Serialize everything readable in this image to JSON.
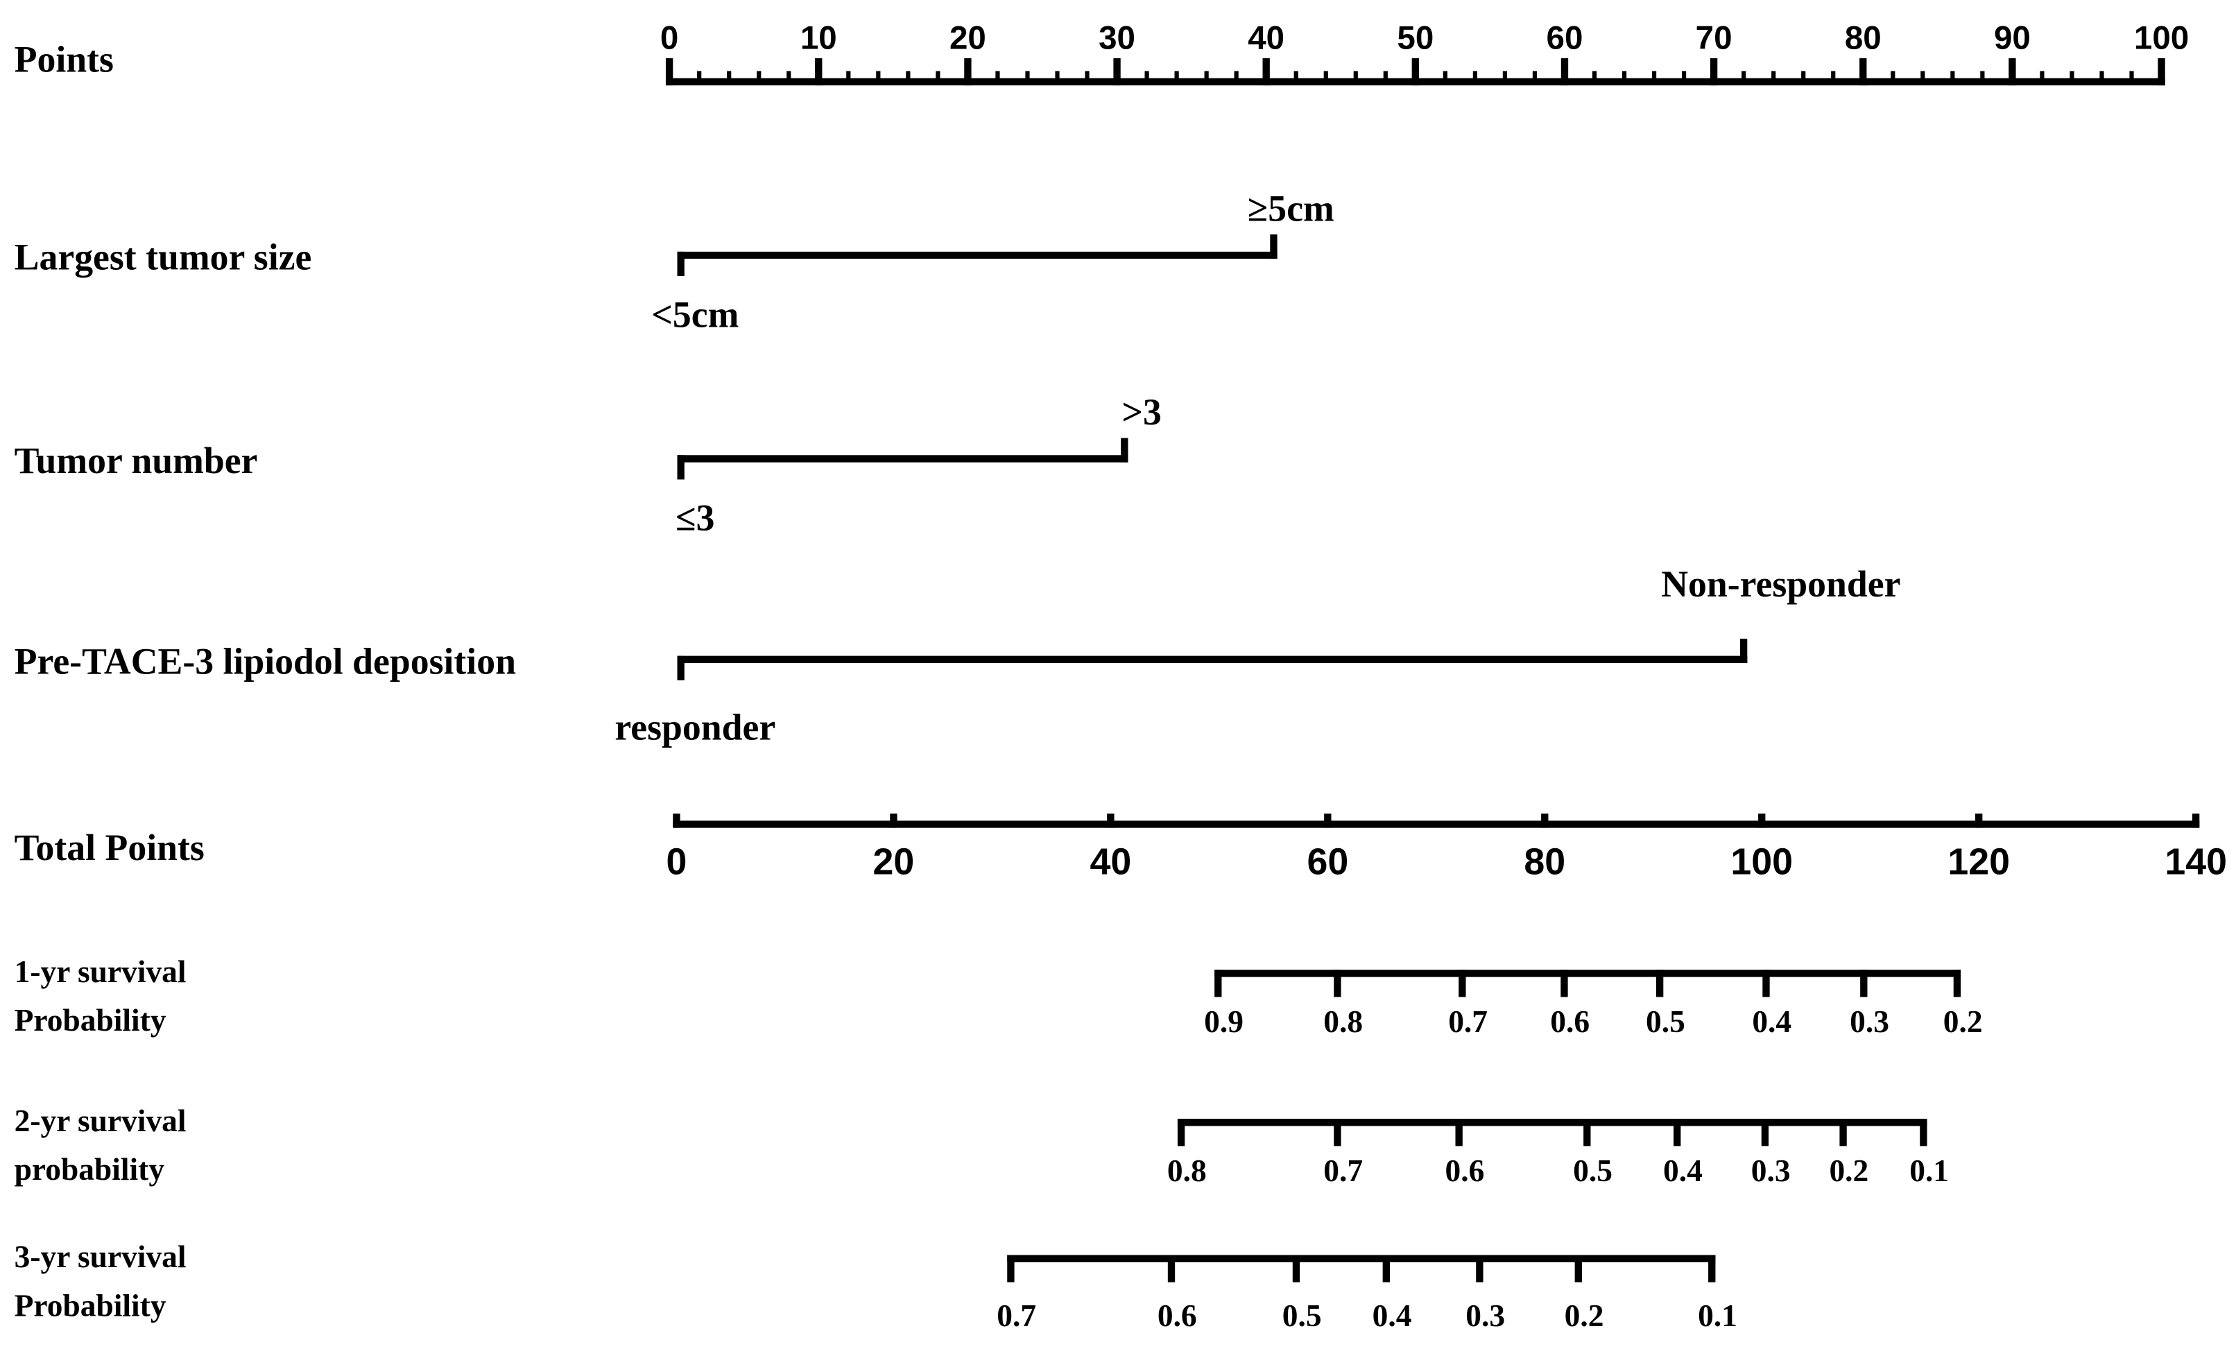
{
  "chart_data": {
    "type": "nomogram",
    "points_axis": {
      "label": "Points",
      "xlim": [
        0,
        100
      ],
      "xticks": [
        0,
        10,
        20,
        30,
        40,
        50,
        60,
        70,
        80,
        90,
        100
      ],
      "minor_tick_step": 2
    },
    "variables": [
      {
        "label": "Largest tumor size",
        "levels": [
          {
            "label": "<5cm",
            "points": 0
          },
          {
            "label": "≥5cm",
            "points": 40.5
          }
        ]
      },
      {
        "label": "Tumor number",
        "levels": [
          {
            "label": "≤3",
            "points": 0
          },
          {
            "label": ">3",
            "points": 30.5
          }
        ]
      },
      {
        "label": "Pre-TACE-3 lipiodol deposition",
        "levels": [
          {
            "label": "responder",
            "points": 0
          },
          {
            "label": "Non-responder",
            "points": 72
          }
        ]
      }
    ],
    "total_points_axis": {
      "label": "Total Points",
      "xlim": [
        0,
        140
      ],
      "xticks": [
        0,
        20,
        40,
        60,
        80,
        100,
        120,
        140
      ]
    },
    "survival_axes": [
      {
        "label": [
          "1-yr survival",
          "Probability"
        ],
        "ticks": [
          {
            "value": 49.9,
            "label": "0.9"
          },
          {
            "value": 60.9,
            "label": "0.8"
          },
          {
            "value": 72.4,
            "label": "0.7"
          },
          {
            "value": 81.8,
            "label": "0.6"
          },
          {
            "value": 90.6,
            "label": "0.5"
          },
          {
            "value": 100.4,
            "label": "0.4"
          },
          {
            "value": 109.4,
            "label": "0.3"
          },
          {
            "value": 118.0,
            "label": "0.2"
          }
        ]
      },
      {
        "label": [
          "2-yr survival",
          "probability"
        ],
        "ticks": [
          {
            "value": 46.5,
            "label": "0.8"
          },
          {
            "value": 60.9,
            "label": "0.7"
          },
          {
            "value": 72.1,
            "label": "0.6"
          },
          {
            "value": 83.9,
            "label": "0.5"
          },
          {
            "value": 92.2,
            "label": "0.4"
          },
          {
            "value": 100.3,
            "label": "0.3"
          },
          {
            "value": 107.5,
            "label": "0.2"
          },
          {
            "value": 114.9,
            "label": "0.1"
          }
        ]
      },
      {
        "label": [
          "3-yr survival",
          "Probability"
        ],
        "ticks": [
          {
            "value": 30.8,
            "label": "0.7"
          },
          {
            "value": 45.6,
            "label": "0.6"
          },
          {
            "value": 57.1,
            "label": "0.5"
          },
          {
            "value": 65.4,
            "label": "0.4"
          },
          {
            "value": 74.0,
            "label": "0.3"
          },
          {
            "value": 83.1,
            "label": "0.2"
          },
          {
            "value": 95.4,
            "label": "0.1"
          }
        ]
      }
    ]
  }
}
